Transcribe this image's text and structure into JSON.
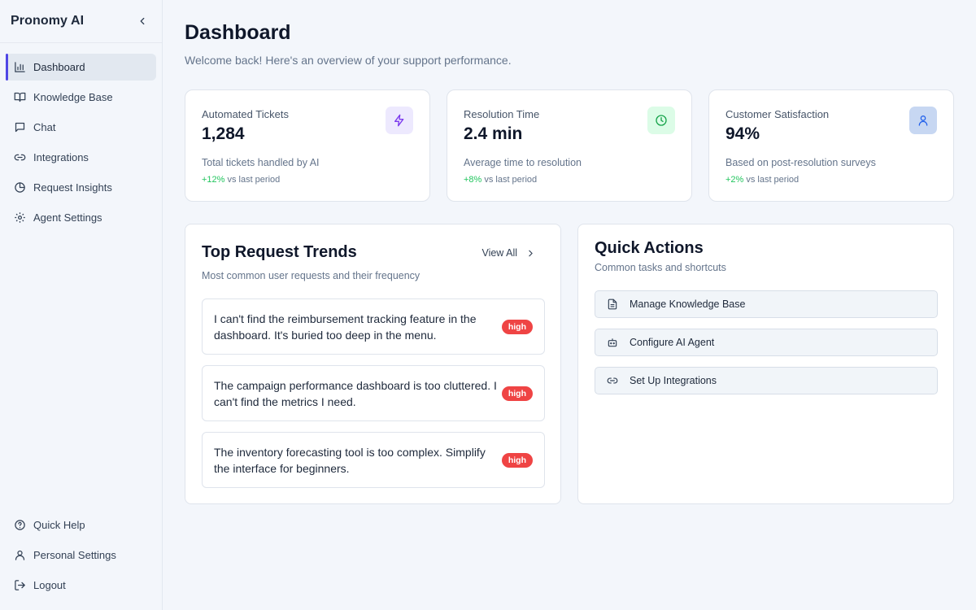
{
  "app": {
    "name": "Pronomy AI"
  },
  "sidebar": {
    "items": [
      {
        "label": "Dashboard",
        "icon": "bar-chart-icon",
        "active": true
      },
      {
        "label": "Knowledge Base",
        "icon": "book-icon"
      },
      {
        "label": "Chat",
        "icon": "chat-icon"
      },
      {
        "label": "Integrations",
        "icon": "link-icon"
      },
      {
        "label": "Request Insights",
        "icon": "pie-chart-icon"
      },
      {
        "label": "Agent Settings",
        "icon": "gear-icon"
      }
    ],
    "bottom_items": [
      {
        "label": "Quick Help",
        "icon": "help-circle-icon"
      },
      {
        "label": "Personal Settings",
        "icon": "user-icon"
      },
      {
        "label": "Logout",
        "icon": "logout-icon"
      }
    ]
  },
  "header": {
    "title": "Dashboard",
    "subtitle": "Welcome back! Here's an overview of your support performance."
  },
  "stats": [
    {
      "label": "Automated Tickets",
      "value": "1,284",
      "description": "Total tickets handled by AI",
      "delta": "+12%",
      "delta_suffix": "vs last period",
      "icon": "lightning-icon",
      "icon_color": "#7c3aed",
      "badge_color": "#ede9fe"
    },
    {
      "label": "Resolution Time",
      "value": "2.4 min",
      "description": "Average time to resolution",
      "delta": "+8%",
      "delta_suffix": "vs last period",
      "icon": "clock-icon",
      "icon_color": "#16a34a",
      "badge_color": "#dcfce7"
    },
    {
      "label": "Customer Satisfaction",
      "value": "94%",
      "description": "Based on post-resolution surveys",
      "delta": "+2%",
      "delta_suffix": "vs last period",
      "icon": "user-icon",
      "icon_color": "#2563eb",
      "badge_color": "#c7d7f2"
    }
  ],
  "trends": {
    "title": "Top Request Trends",
    "subtitle": "Most common user requests and their frequency",
    "view_all": "View All",
    "items": [
      {
        "text": "I can't find the reimbursement tracking feature in the dashboard. It's buried too deep in the menu.",
        "priority": "high"
      },
      {
        "text": "The campaign performance dashboard is too cluttered. I can't find the metrics I need.",
        "priority": "high"
      },
      {
        "text": "The inventory forecasting tool is too complex. Simplify the interface for beginners.",
        "priority": "high"
      }
    ]
  },
  "quick_actions": {
    "title": "Quick Actions",
    "subtitle": "Common tasks and shortcuts",
    "items": [
      {
        "label": "Manage Knowledge Base",
        "icon": "document-icon"
      },
      {
        "label": "Configure AI Agent",
        "icon": "robot-icon"
      },
      {
        "label": "Set Up Integrations",
        "icon": "link-icon"
      }
    ]
  },
  "colors": {
    "accent": "#4f46e5",
    "priority_high": "#ef4444",
    "positive": "#22c55e"
  }
}
